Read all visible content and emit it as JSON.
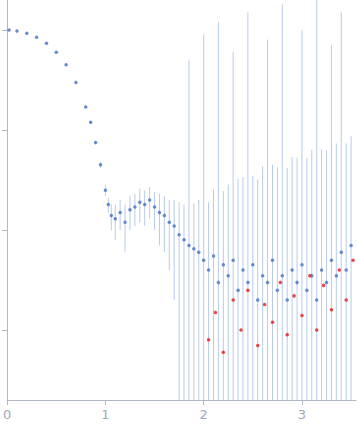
{
  "chart_data": {
    "type": "scatter",
    "log": "y",
    "grid": false,
    "tick_labels": "x",
    "xlim": [
      0,
      3.55
    ],
    "xticks": [
      0,
      1,
      2,
      3
    ],
    "ylim": [
      0.0002,
      2
    ],
    "yticks": [
      0.001,
      0.01,
      0.1,
      1
    ],
    "series": [
      {
        "color": "#4472c4",
        "marker": "circle",
        "x": [
          0.02,
          0.1,
          0.2,
          0.3,
          0.4,
          0.5,
          0.6,
          0.7,
          0.8,
          0.85,
          0.9,
          0.95,
          1.0,
          1.03,
          1.06,
          1.1,
          1.15,
          1.2,
          1.25,
          1.3,
          1.35,
          1.4,
          1.45,
          1.5,
          1.55,
          1.6,
          1.65,
          1.7,
          1.75,
          1.8,
          1.85,
          1.9,
          1.95,
          2.0,
          2.05,
          2.1,
          2.15,
          2.2,
          2.25,
          2.3,
          2.35,
          2.4,
          2.45,
          2.5,
          2.55,
          2.6,
          2.65,
          2.7,
          2.75,
          2.8,
          2.85,
          2.9,
          2.95,
          3.0,
          3.05,
          3.1,
          3.15,
          3.2,
          3.25,
          3.3,
          3.35,
          3.4,
          3.45,
          3.5
        ],
        "values": [
          1.0,
          0.98,
          0.93,
          0.85,
          0.74,
          0.6,
          0.45,
          0.3,
          0.17,
          0.12,
          0.075,
          0.045,
          0.025,
          0.018,
          0.014,
          0.013,
          0.015,
          0.012,
          0.016,
          0.017,
          0.019,
          0.018,
          0.02,
          0.017,
          0.015,
          0.014,
          0.012,
          0.011,
          0.009,
          0.008,
          0.007,
          0.0065,
          0.006,
          0.005,
          0.004,
          0.0055,
          0.003,
          0.0045,
          0.0035,
          0.005,
          0.0025,
          0.004,
          0.003,
          0.0045,
          0.002,
          0.0035,
          0.003,
          0.005,
          0.0025,
          0.0035,
          0.002,
          0.004,
          0.003,
          0.0045,
          0.0025,
          0.0035,
          0.002,
          0.004,
          0.003,
          0.005,
          0.0035,
          0.006,
          0.004,
          0.007
        ],
        "error": [
          0.003,
          0.003,
          0.003,
          0.003,
          0.003,
          0.003,
          0.003,
          0.003,
          0.003,
          0.003,
          0.003,
          0.003,
          0.003,
          0.003,
          0.004,
          0.005,
          0.005,
          0.006,
          0.006,
          0.006,
          0.007,
          0.007,
          0.007,
          0.007,
          0.008,
          0.008,
          0.008,
          0.009,
          0.01,
          0.01,
          0.5,
          0.012,
          0.014,
          0.9,
          0.015,
          0.02,
          1.2,
          0.02,
          0.025,
          0.6,
          0.03,
          0.03,
          1.5,
          0.03,
          0.03,
          0.04,
          0.8,
          0.04,
          0.04,
          1.8,
          0.04,
          0.05,
          0.05,
          1.0,
          0.05,
          0.06,
          2.0,
          0.06,
          0.06,
          0.7,
          0.07,
          1.5,
          0.07,
          0.08
        ]
      },
      {
        "color": "#e41a1c",
        "marker": "circle",
        "x": [
          2.05,
          2.12,
          2.2,
          2.3,
          2.38,
          2.45,
          2.55,
          2.62,
          2.7,
          2.78,
          2.85,
          2.92,
          3.0,
          3.08,
          3.15,
          3.22,
          3.3,
          3.38,
          3.45,
          3.52
        ],
        "values": [
          0.0008,
          0.0015,
          0.0006,
          0.002,
          0.001,
          0.0025,
          0.0007,
          0.0018,
          0.0012,
          0.003,
          0.0009,
          0.0022,
          0.0014,
          0.0035,
          0.001,
          0.0028,
          0.0016,
          0.004,
          0.002,
          0.005
        ]
      }
    ]
  }
}
